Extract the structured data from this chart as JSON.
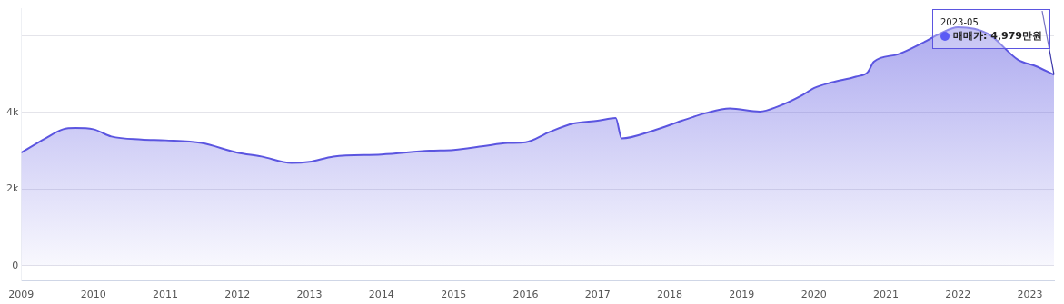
{
  "chart_data": {
    "type": "area",
    "x": [
      "2009-01",
      "2009-05",
      "2009-08",
      "2009-10",
      "2010-01",
      "2010-04",
      "2010-09",
      "2011-01",
      "2011-07",
      "2012-01",
      "2012-05",
      "2012-10",
      "2013-01",
      "2013-05",
      "2014-01",
      "2014-09",
      "2015-01",
      "2015-06",
      "2015-10",
      "2016-01",
      "2016-05",
      "2016-09",
      "2017-01",
      "2017-04",
      "2017-05",
      "2017-10",
      "2018-03",
      "2018-07",
      "2018-11",
      "2019-04",
      "2019-07",
      "2019-11",
      "2020-01",
      "2020-04",
      "2020-08",
      "2020-10",
      "2020-11",
      "2021-03",
      "2021-07",
      "2021-10",
      "2022-01",
      "2022-06",
      "2022-11",
      "2023-02",
      "2023-05"
    ],
    "series": [
      {
        "color": "#5b55e0",
        "values": [
          2950,
          3320,
          3560,
          3590,
          3560,
          3370,
          3290,
          3270,
          3200,
          2950,
          2850,
          2680,
          2710,
          2850,
          2900,
          3000,
          3020,
          3120,
          3200,
          3220,
          3490,
          3710,
          3780,
          3850,
          3320,
          3510,
          3780,
          3980,
          4100,
          4020,
          4150,
          4440,
          4630,
          4780,
          4930,
          5050,
          5320,
          5510,
          5800,
          6050,
          6220,
          6050,
          5370,
          5200,
          4979
        ]
      }
    ],
    "xlim": [
      "2009-01",
      "2023-05"
    ],
    "xticks": [
      "2009",
      "2010",
      "2011",
      "2012",
      "2013",
      "2014",
      "2015",
      "2016",
      "2017",
      "2018",
      "2019",
      "2020",
      "2021",
      "2022",
      "2023"
    ],
    "ylim": [
      -400,
      6700
    ],
    "yticks": [
      0,
      {
        "value": 2000,
        "label": "2k"
      },
      {
        "value": 4000,
        "label": "4k"
      },
      {
        "value": 6000,
        "label": null
      }
    ],
    "grid": "y",
    "legend": false,
    "marker": "none",
    "annotations": [
      "2023-05",
      "매매가: 4,979만원"
    ]
  }
}
